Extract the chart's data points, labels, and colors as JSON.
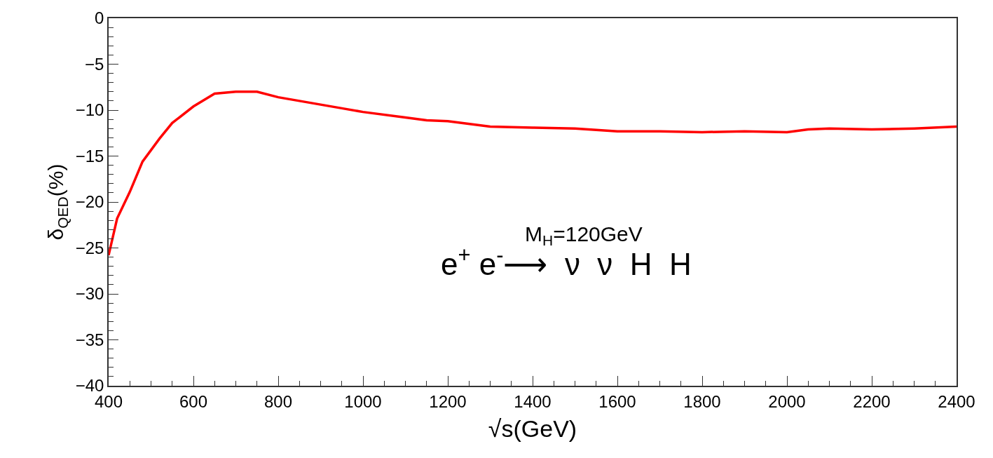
{
  "chart_data": {
    "type": "line",
    "xlabel": "√s(GeV)",
    "ylabel": "δ$_{QED}$(%)",
    "annotations": [
      "M$_{H}$=120GeV",
      "e$^{+}$ e$^{-}$⟶  ν  ν  H  H"
    ],
    "series": [
      {
        "color": "#ff0000",
        "x": [
          400,
          420,
          450,
          480,
          520,
          550,
          600,
          650,
          700,
          750,
          800,
          850,
          900,
          950,
          1000,
          1100,
          1150,
          1200,
          1300,
          1400,
          1500,
          1600,
          1700,
          1800,
          1900,
          2000,
          2050,
          2100,
          2200,
          2300,
          2400
        ],
        "values": [
          -25.8,
          -21.8,
          -18.9,
          -15.6,
          -13.1,
          -11.4,
          -9.6,
          -8.2,
          -8.0,
          -8.0,
          -8.6,
          -9.0,
          -9.4,
          -9.8,
          -10.2,
          -10.8,
          -11.1,
          -11.2,
          -11.8,
          -11.9,
          -12.0,
          -12.3,
          -12.3,
          -12.4,
          -12.3,
          -12.4,
          -12.1,
          -12.0,
          -12.1,
          -12.0,
          -11.8
        ]
      }
    ],
    "xlim": [
      400,
      2400
    ],
    "xticks": [
      400,
      600,
      800,
      1000,
      1200,
      1400,
      1600,
      1800,
      2000,
      2200,
      2400
    ],
    "ylim": [
      -40,
      0
    ],
    "yticks": [
      -40,
      -35,
      -30,
      -25,
      -20,
      -15,
      -10,
      -5,
      0
    ],
    "marker": "none",
    "line_style": "solid"
  }
}
